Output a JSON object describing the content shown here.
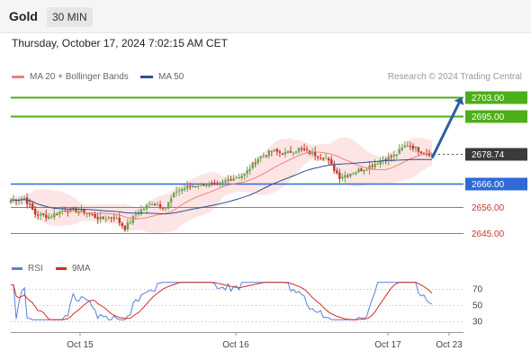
{
  "header": {
    "instrument": "Gold",
    "timeframe": "30 MIN"
  },
  "timestamp": "Thursday, October 17, 2024 7:02:15 AM CET",
  "legend": {
    "ma20_label": "MA 20 + Bollinger Bands",
    "ma50_label": "MA 50",
    "credit": "Research © 2024 Trading Central"
  },
  "rsi_legend": {
    "rsi_label": "RSI",
    "ma9_label": "9MA"
  },
  "colors": {
    "ma20": "#f08080",
    "ma50": "#2f4f8f",
    "bollinger_fill": "#fde0e0",
    "candle_up": "#6aa84f",
    "candle_down": "#c0392b",
    "resistance": "#4caf1a",
    "pivot": "#2e6bd6",
    "support": "#e05a5a",
    "arrow": "#2a5fa8",
    "rsi": "#5c7fd6",
    "rsi_ma": "#d62a2a"
  },
  "chart_data": [
    {
      "type": "candlestick",
      "title": "",
      "x_tick_labels": [
        "Oct 15",
        "Oct 16",
        "Oct 17",
        "Oct 23"
      ],
      "ylim": [
        2636,
        2707
      ],
      "series": [
        {
          "name": "MA 20 + Bollinger Bands"
        },
        {
          "name": "MA 50"
        }
      ],
      "price_levels": [
        {
          "label": "2703.00",
          "value": 2703.0,
          "kind": "resistance"
        },
        {
          "label": "2695.00",
          "value": 2695.0,
          "kind": "resistance"
        },
        {
          "label": "2678.74",
          "value": 2678.74,
          "kind": "last_price"
        },
        {
          "label": "2666.00",
          "value": 2666.0,
          "kind": "pivot"
        },
        {
          "label": "2656.00",
          "value": 2656.0,
          "kind": "support"
        },
        {
          "label": "2645.00",
          "value": 2645.0,
          "kind": "support"
        }
      ],
      "projection": {
        "from": 2677,
        "to": 2703,
        "direction": "up"
      }
    },
    {
      "type": "line",
      "title": "",
      "y_tick_labels": [
        "70",
        "50",
        "30"
      ],
      "ylim": [
        20,
        80
      ],
      "series": [
        {
          "name": "RSI"
        },
        {
          "name": "9MA"
        }
      ],
      "guide_levels": [
        70,
        50,
        30
      ]
    }
  ]
}
